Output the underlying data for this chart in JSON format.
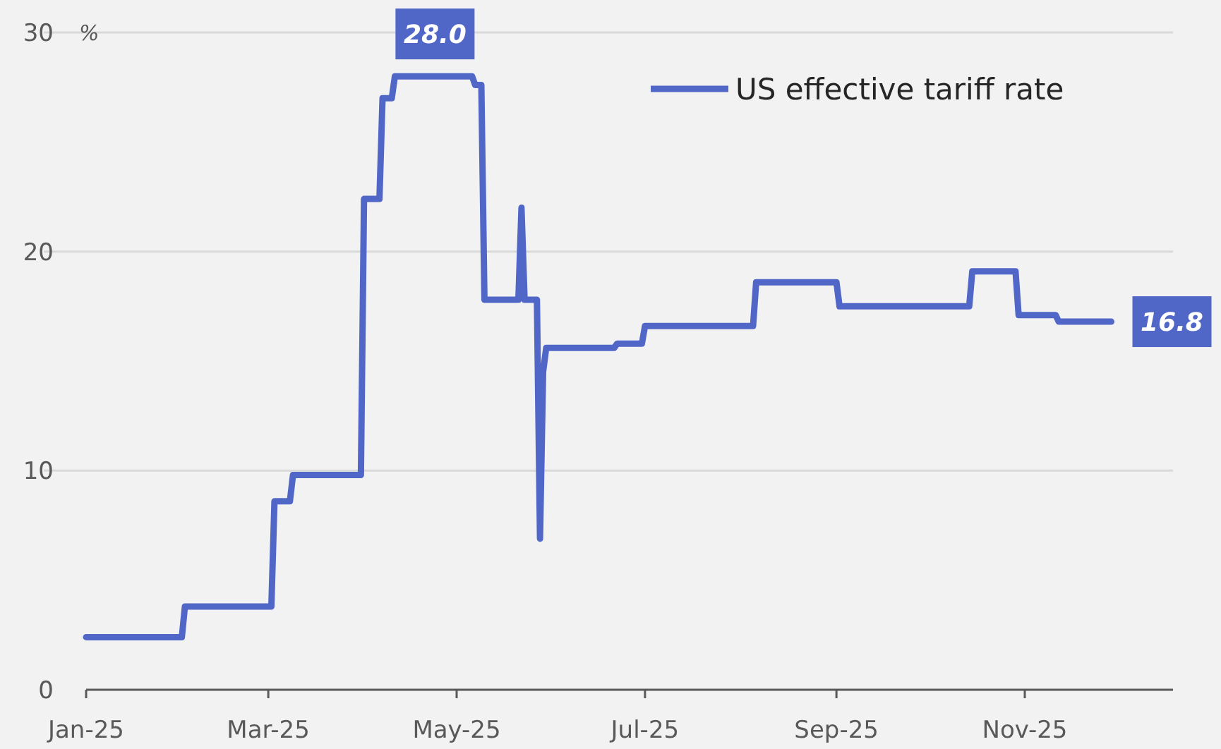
{
  "chart_data": {
    "type": "line",
    "ylabel": "%",
    "x": [
      "2025-01-01",
      "2025-02-01",
      "2025-02-02",
      "2025-03-02",
      "2025-03-03",
      "2025-03-08",
      "2025-03-09",
      "2025-03-31",
      "2025-04-01",
      "2025-04-06",
      "2025-04-07",
      "2025-04-10",
      "2025-04-11",
      "2025-05-06",
      "2025-05-07",
      "2025-05-09",
      "2025-05-10",
      "2025-05-21",
      "2025-05-22",
      "2025-05-23",
      "2025-05-27",
      "2025-05-28",
      "2025-05-29",
      "2025-05-30",
      "2025-06-21",
      "2025-06-22",
      "2025-06-30",
      "2025-07-01",
      "2025-08-05",
      "2025-08-06",
      "2025-09-01",
      "2025-09-02",
      "2025-10-14",
      "2025-10-15",
      "2025-10-29",
      "2025-10-30",
      "2025-11-11",
      "2025-11-12",
      "2025-11-29"
    ],
    "series": [
      {
        "name": "US effective tariff rate",
        "color": "#5067c8",
        "values": [
          2.4,
          2.4,
          3.8,
          3.8,
          8.6,
          8.6,
          9.8,
          9.8,
          22.4,
          22.4,
          27.0,
          27.0,
          28.0,
          28.0,
          27.6,
          27.6,
          17.8,
          17.8,
          22.0,
          17.8,
          17.8,
          6.9,
          14.5,
          15.6,
          15.6,
          15.8,
          15.8,
          16.6,
          16.6,
          18.6,
          18.6,
          17.5,
          17.5,
          19.1,
          19.1,
          17.1,
          17.1,
          16.8,
          16.8
        ]
      }
    ],
    "xlim": [
      "2025-01-01",
      "2025-12-19"
    ],
    "xticks": [
      {
        "value": "2025-01-01",
        "label": "Jan-25"
      },
      {
        "value": "2025-03-01",
        "label": "Mar-25"
      },
      {
        "value": "2025-05-01",
        "label": "May-25"
      },
      {
        "value": "2025-07-01",
        "label": "Jul-25"
      },
      {
        "value": "2025-09-01",
        "label": "Sep-25"
      },
      {
        "value": "2025-11-01",
        "label": "Nov-25"
      }
    ],
    "ylim": [
      0,
      30
    ],
    "yticks": [
      0,
      10,
      20,
      30
    ],
    "grid": "y",
    "legend": "top right",
    "marker": "none",
    "line_style": "solid",
    "annotations": [
      {
        "text": "28.0",
        "x": "2025-04-24",
        "y": 28.0
      },
      {
        "text": "16.8",
        "x": "2025-11-29",
        "y": 16.8
      }
    ]
  }
}
